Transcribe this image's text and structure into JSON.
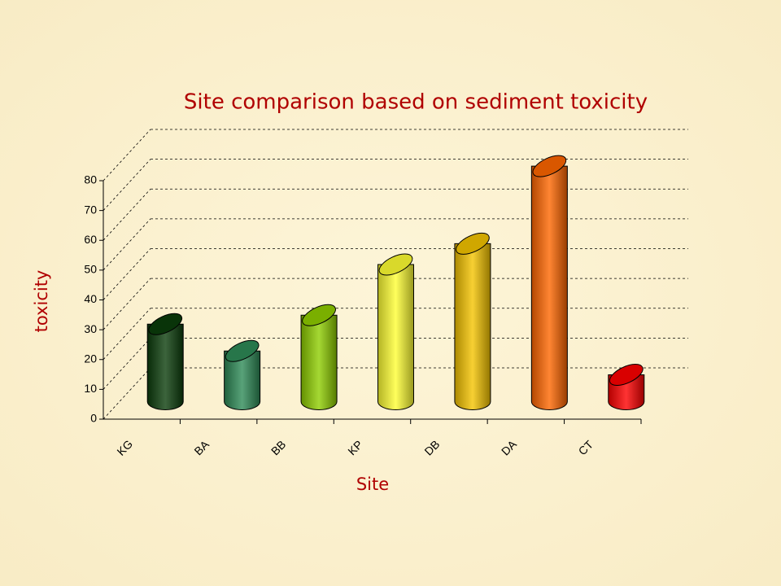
{
  "chart_data": {
    "type": "bar3d",
    "title": "Site comparison based on sediment toxicity",
    "x_label": "Site",
    "y_label": "toxicity",
    "categories": [
      "KG",
      "BA",
      "BB",
      "KP",
      "DB",
      "DA",
      "CT"
    ],
    "values": [
      26,
      17,
      29,
      46,
      53,
      79,
      9
    ],
    "colors": [
      "#0b3d0b",
      "#2e8b57",
      "#8fce00",
      "#ffff33",
      "#f5c400",
      "#ff6600",
      "#ff0000"
    ],
    "ylim": [
      0,
      80
    ],
    "yticks": [
      0,
      10,
      20,
      30,
      40,
      50,
      60,
      70,
      80
    ],
    "grid": true
  }
}
